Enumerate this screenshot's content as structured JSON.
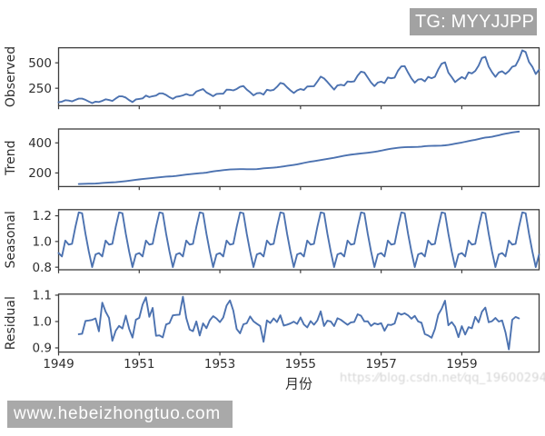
{
  "watermarks": {
    "tg_badge": "TG: MYYJJPP",
    "site_badge": "www.hebeizhongtuo.com",
    "faint_url": "https:⁄⁄blog.csdn.net⁄qq_19600294"
  },
  "chart_data": {
    "type": "line",
    "title": "",
    "xlabel": "月份",
    "x_unit": "months since 1949-01",
    "xlim": [
      0,
      143
    ],
    "xticks": {
      "positions": [
        0,
        24,
        48,
        72,
        96,
        120
      ],
      "labels": [
        "1949",
        "1951",
        "1953",
        "1955",
        "1957",
        "1959"
      ]
    },
    "line_color": "#4C72B0",
    "spine_color": "#3c3c3c",
    "text_color": "#2e2e2e",
    "panels": [
      {
        "ylabel": "Observed",
        "values": [
          112,
          118,
          132,
          129,
          121,
          135,
          148,
          148,
          136,
          119,
          104,
          118,
          115,
          126,
          141,
          135,
          125,
          149,
          170,
          170,
          158,
          133,
          114,
          140,
          145,
          150,
          178,
          163,
          172,
          178,
          199,
          199,
          184,
          162,
          146,
          166,
          171,
          180,
          193,
          181,
          183,
          218,
          230,
          242,
          209,
          191,
          172,
          194,
          196,
          196,
          236,
          235,
          229,
          243,
          264,
          272,
          237,
          211,
          180,
          201,
          204,
          188,
          235,
          227,
          234,
          264,
          302,
          293,
          259,
          229,
          203,
          229,
          242,
          233,
          267,
          269,
          270,
          315,
          364,
          347,
          312,
          274,
          237,
          278,
          284,
          277,
          317,
          313,
          318,
          374,
          413,
          405,
          355,
          306,
          271,
          306,
          315,
          301,
          356,
          348,
          355,
          422,
          465,
          467,
          404,
          347,
          305,
          336,
          340,
          318,
          362,
          348,
          363,
          435,
          491,
          505,
          404,
          359,
          310,
          337,
          360,
          342,
          406,
          396,
          420,
          472,
          548,
          559,
          463,
          407,
          362,
          405,
          417,
          391,
          419,
          461,
          472,
          535,
          622,
          606,
          508,
          461,
          390,
          432
        ],
        "ylim": [
          78.1,
          647.9
        ],
        "yticks": [
          250,
          500
        ]
      },
      {
        "ylabel": "Trend",
        "values": [
          null,
          null,
          null,
          null,
          null,
          null,
          126.7917,
          127.25,
          127.9583,
          128.5833,
          129.0,
          129.75,
          131.25,
          133.0833,
          134.9167,
          136.4167,
          137.4167,
          138.75,
          140.9167,
          143.1667,
          145.7083,
          148.4167,
          151.5417,
          154.7083,
          157.125,
          159.5417,
          161.8333,
          164.125,
          166.6667,
          169.0833,
          171.25,
          173.5833,
          175.4583,
          176.8333,
          178.0417,
          180.1667,
          183.125,
          186.2083,
          189.0417,
          191.2917,
          193.5833,
          195.8333,
          198.0417,
          199.75,
          202.2083,
          206.25,
          210.4167,
          213.375,
          215.8333,
          218.5,
          220.9167,
          222.9167,
          224.0833,
          224.7083,
          225.3333,
          225.3333,
          224.9583,
          224.5833,
          224.4583,
          225.5417,
          228.0,
          230.4583,
          232.25,
          233.9167,
          235.625,
          237.75,
          240.5,
          243.9583,
          247.1667,
          250.25,
          253.5,
          257.125,
          261.8333,
          266.6667,
          271.125,
          275.2083,
          278.5,
          281.9583,
          285.75,
          289.3333,
          293.25,
          297.1667,
          301.0,
          305.4583,
          309.9583,
          314.4167,
          318.625,
          321.75,
          324.5,
          327.0833,
          329.5417,
          331.8333,
          334.4583,
          337.5417,
          340.5417,
          344.0833,
          348.25,
          353.0,
          357.625,
          361.375,
          364.5,
          367.1667,
          369.4583,
          371.2083,
          372.1667,
          372.4167,
          372.75,
          373.625,
          375.25,
          377.9167,
          379.5,
          380.0,
          380.7083,
          380.9583,
          381.8333,
          383.6667,
          386.5,
          390.3333,
          394.7083,
          398.625,
          402.5417,
          407.1667,
          411.875,
          416.3333,
          420.5,
          425.5,
          430.7083,
          435.125,
          437.7083,
          440.9583,
          445.8333,
          450.625,
          456.3333,
          461.375,
          465.2083,
          469.3333,
          472.75,
          475.0417,
          null,
          null,
          null,
          null,
          null,
          null
        ],
        "ylim": [
          109.3792,
          492.4542
        ],
        "yticks": [
          200,
          400
        ]
      },
      {
        "ylabel": "Seasonal",
        "values": [
          0.9102,
          0.8836,
          1.0074,
          0.9759,
          0.9814,
          1.1128,
          1.2266,
          1.2199,
          1.0605,
          0.9218,
          0.8012,
          0.8988,
          0.9102,
          0.8836,
          1.0074,
          0.9759,
          0.9814,
          1.1128,
          1.2266,
          1.2199,
          1.0605,
          0.9218,
          0.8012,
          0.8988,
          0.9102,
          0.8836,
          1.0074,
          0.9759,
          0.9814,
          1.1128,
          1.2266,
          1.2199,
          1.0605,
          0.9218,
          0.8012,
          0.8988,
          0.9102,
          0.8836,
          1.0074,
          0.9759,
          0.9814,
          1.1128,
          1.2266,
          1.2199,
          1.0605,
          0.9218,
          0.8012,
          0.8988,
          0.9102,
          0.8836,
          1.0074,
          0.9759,
          0.9814,
          1.1128,
          1.2266,
          1.2199,
          1.0605,
          0.9218,
          0.8012,
          0.8988,
          0.9102,
          0.8836,
          1.0074,
          0.9759,
          0.9814,
          1.1128,
          1.2266,
          1.2199,
          1.0605,
          0.9218,
          0.8012,
          0.8988,
          0.9102,
          0.8836,
          1.0074,
          0.9759,
          0.9814,
          1.1128,
          1.2266,
          1.2199,
          1.0605,
          0.9218,
          0.8012,
          0.8988,
          0.9102,
          0.8836,
          1.0074,
          0.9759,
          0.9814,
          1.1128,
          1.2266,
          1.2199,
          1.0605,
          0.9218,
          0.8012,
          0.8988,
          0.9102,
          0.8836,
          1.0074,
          0.9759,
          0.9814,
          1.1128,
          1.2266,
          1.2199,
          1.0605,
          0.9218,
          0.8012,
          0.8988,
          0.9102,
          0.8836,
          1.0074,
          0.9759,
          0.9814,
          1.1128,
          1.2266,
          1.2199,
          1.0605,
          0.9218,
          0.8012,
          0.8988,
          0.9102,
          0.8836,
          1.0074,
          0.9759,
          0.9814,
          1.1128,
          1.2266,
          1.2199,
          1.0605,
          0.9218,
          0.8012,
          0.8988,
          0.9102,
          0.8836,
          1.0074,
          0.9759,
          0.9814,
          1.1128,
          1.2266,
          1.2199,
          1.0605,
          0.9218,
          0.8012,
          0.8988
        ],
        "ylim": [
          0.7799,
          1.2478
        ],
        "yticks": [
          0.8,
          1.0,
          1.2
        ]
      },
      {
        "ylabel": "Residual",
        "values": [
          null,
          null,
          null,
          null,
          null,
          null,
          0.9517,
          0.9534,
          1.0022,
          1.004,
          1.0063,
          1.0118,
          0.9626,
          1.0715,
          1.0374,
          1.014,
          0.9269,
          0.965,
          0.9836,
          0.9734,
          1.0225,
          0.9722,
          0.939,
          1.0068,
          1.0138,
          1.064,
          1.0919,
          1.0177,
          1.0516,
          0.946,
          0.9474,
          0.9398,
          0.9889,
          0.9939,
          1.0235,
          1.0251,
          1.0259,
          1.094,
          1.0135,
          0.9696,
          0.9633,
          1.0004,
          0.9469,
          0.9931,
          0.9746,
          1.0047,
          1.0203,
          1.0115,
          0.9977,
          1.0152,
          1.0605,
          1.0802,
          1.0413,
          0.9718,
          0.9552,
          0.9895,
          0.9934,
          1.0193,
          1.0009,
          0.9915,
          0.983,
          0.9232,
          1.0044,
          0.9944,
          1.0119,
          0.9979,
          1.0238,
          0.9845,
          0.9881,
          0.9928,
          0.9995,
          0.9909,
          1.0154,
          0.9888,
          0.9776,
          1.0016,
          0.9879,
          1.004,
          1.0386,
          0.9831,
          1.0033,
          1.0003,
          0.9828,
          1.0126,
          1.0066,
          0.997,
          0.9876,
          0.9968,
          0.9986,
          1.0276,
          1.0218,
          1.0005,
          1.0009,
          0.9835,
          0.9933,
          0.9894,
          0.9937,
          0.965,
          0.9882,
          0.9868,
          0.9924,
          1.0329,
          1.0261,
          1.0313,
          1.0236,
          1.0108,
          1.0213,
          1.0005,
          0.9954,
          0.9523,
          0.9469,
          0.9384,
          0.9716,
          1.0261,
          1.0484,
          1.079,
          0.9857,
          0.9978,
          0.9803,
          0.9406,
          0.9825,
          0.9506,
          0.9785,
          0.9746,
          1.0178,
          0.9969,
          1.0373,
          1.0531,
          0.9974,
          1.0013,
          1.0135,
          0.9999,
          1.0039,
          0.9591,
          0.8941,
          1.0065,
          1.0174,
          1.0121,
          null,
          null,
          null,
          null,
          null,
          null
        ],
        "ylim": [
          0.8841,
          1.104
        ],
        "yticks": [
          0.9,
          1.0,
          1.1
        ]
      }
    ]
  }
}
